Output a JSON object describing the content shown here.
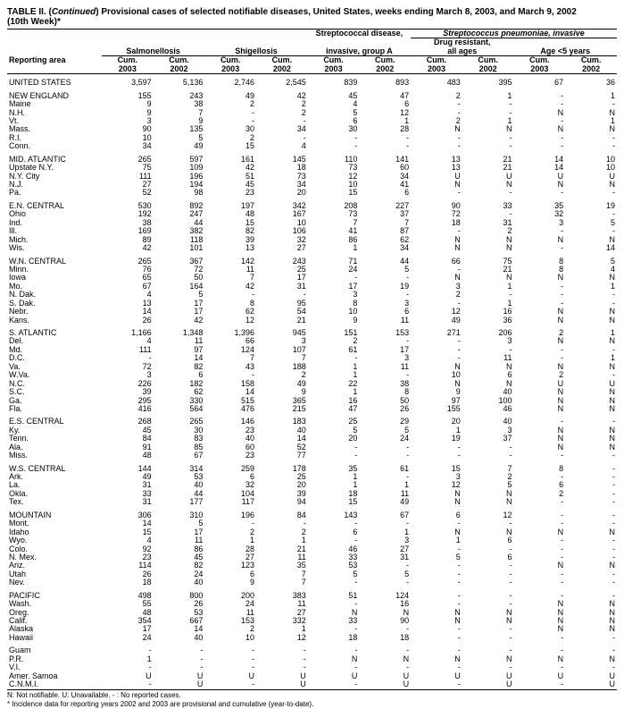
{
  "title_prefix": "TABLE II. (",
  "title_cont": "Continued",
  "title_suffix": ") Provisional cases of selected notifiable diseases, United States, weeks ending March 8, 2003, and March 9, 2002",
  "title_line2": "(10th Week)*",
  "super_header": "Streptococcus pneumoniae, invasive",
  "disease_headers": [
    "Salmonellosis",
    "Shigellosis",
    "Streptococcal disease,",
    "invasive, group A",
    "Drug resistant,",
    "all ages",
    "Age <5 years"
  ],
  "col_labels": {
    "area": "Reporting area",
    "cum2003": "Cum.\n2003",
    "cum2002": "Cum.\n2002"
  },
  "footnotes": [
    "N: Not notifiable.        U: Unavailable.            - : No reported cases.",
    "* Incidence data for reporting years 2002 and 2003 are provisional and cumulative (year-to-date)."
  ],
  "blocks": [
    [
      [
        "UNITED STATES",
        "3,597",
        "5,136",
        "2,746",
        "2,545",
        "839",
        "893",
        "483",
        "395",
        "67",
        "36"
      ]
    ],
    [
      [
        "NEW ENGLAND",
        "155",
        "243",
        "49",
        "42",
        "45",
        "47",
        "2",
        "1",
        "-",
        "1"
      ],
      [
        "Maine",
        "9",
        "38",
        "2",
        "2",
        "4",
        "6",
        "-",
        "-",
        "-",
        "-"
      ],
      [
        "N.H.",
        "9",
        "7",
        "-",
        "2",
        "5",
        "12",
        "-",
        "-",
        "N",
        "N"
      ],
      [
        "Vt.",
        "3",
        "9",
        "-",
        "-",
        "6",
        "1",
        "2",
        "1",
        "-",
        "1"
      ],
      [
        "Mass.",
        "90",
        "135",
        "30",
        "34",
        "30",
        "28",
        "N",
        "N",
        "N",
        "N"
      ],
      [
        "R.I.",
        "10",
        "5",
        "2",
        "-",
        "-",
        "-",
        "-",
        "-",
        "-",
        "-"
      ],
      [
        "Conn.",
        "34",
        "49",
        "15",
        "4",
        "-",
        "-",
        "-",
        "-",
        "-",
        "-"
      ]
    ],
    [
      [
        "MID. ATLANTIC",
        "265",
        "597",
        "161",
        "145",
        "110",
        "141",
        "13",
        "21",
        "14",
        "10"
      ],
      [
        "Upstate N.Y.",
        "75",
        "109",
        "42",
        "18",
        "73",
        "60",
        "13",
        "21",
        "14",
        "10"
      ],
      [
        "N.Y. City",
        "111",
        "196",
        "51",
        "73",
        "12",
        "34",
        "U",
        "U",
        "U",
        "U"
      ],
      [
        "N.J.",
        "27",
        "194",
        "45",
        "34",
        "10",
        "41",
        "N",
        "N",
        "N",
        "N"
      ],
      [
        "Pa.",
        "52",
        "98",
        "23",
        "20",
        "15",
        "6",
        "-",
        "-",
        "-",
        "-"
      ]
    ],
    [
      [
        "E.N. CENTRAL",
        "530",
        "892",
        "197",
        "342",
        "208",
        "227",
        "90",
        "33",
        "35",
        "19"
      ],
      [
        "Ohio",
        "192",
        "247",
        "48",
        "167",
        "73",
        "37",
        "72",
        "-",
        "32",
        "-"
      ],
      [
        "Ind.",
        "38",
        "44",
        "15",
        "10",
        "7",
        "7",
        "18",
        "31",
        "3",
        "5"
      ],
      [
        "Ill.",
        "169",
        "382",
        "82",
        "106",
        "41",
        "87",
        "-",
        "2",
        "-",
        "-"
      ],
      [
        "Mich.",
        "89",
        "118",
        "39",
        "32",
        "86",
        "62",
        "N",
        "N",
        "N",
        "N"
      ],
      [
        "Wis.",
        "42",
        "101",
        "13",
        "27",
        "1",
        "34",
        "N",
        "N",
        "-",
        "14"
      ]
    ],
    [
      [
        "W.N. CENTRAL",
        "265",
        "367",
        "142",
        "243",
        "71",
        "44",
        "66",
        "75",
        "8",
        "5"
      ],
      [
        "Minn.",
        "76",
        "72",
        "11",
        "25",
        "24",
        "5",
        "-",
        "21",
        "8",
        "4"
      ],
      [
        "Iowa",
        "65",
        "50",
        "7",
        "17",
        "-",
        "-",
        "N",
        "N",
        "N",
        "N"
      ],
      [
        "Mo.",
        "67",
        "164",
        "42",
        "31",
        "17",
        "19",
        "3",
        "1",
        "-",
        "1"
      ],
      [
        "N. Dak.",
        "4",
        "5",
        "-",
        "-",
        "3",
        "-",
        "2",
        "-",
        "-",
        "-"
      ],
      [
        "S. Dak.",
        "13",
        "17",
        "8",
        "95",
        "8",
        "3",
        "-",
        "1",
        "-",
        "-"
      ],
      [
        "Nebr.",
        "14",
        "17",
        "62",
        "54",
        "10",
        "6",
        "12",
        "16",
        "N",
        "N"
      ],
      [
        "Kans.",
        "26",
        "42",
        "12",
        "21",
        "9",
        "11",
        "49",
        "36",
        "N",
        "N"
      ]
    ],
    [
      [
        "S. ATLANTIC",
        "1,166",
        "1,348",
        "1,396",
        "945",
        "151",
        "153",
        "271",
        "206",
        "2",
        "1"
      ],
      [
        "Del.",
        "4",
        "11",
        "66",
        "3",
        "2",
        "-",
        "-",
        "3",
        "N",
        "N"
      ],
      [
        "Md.",
        "111",
        "97",
        "124",
        "107",
        "61",
        "17",
        "-",
        "-",
        "-",
        "-"
      ],
      [
        "D.C.",
        "-",
        "14",
        "7",
        "7",
        "-",
        "3",
        "-",
        "11",
        "-",
        "1"
      ],
      [
        "Va.",
        "72",
        "82",
        "43",
        "188",
        "1",
        "11",
        "N",
        "N",
        "N",
        "N"
      ],
      [
        "W.Va.",
        "3",
        "6",
        "-",
        "2",
        "1",
        "-",
        "10",
        "6",
        "2",
        "-"
      ],
      [
        "N.C.",
        "226",
        "182",
        "158",
        "49",
        "22",
        "38",
        "N",
        "N",
        "U",
        "U"
      ],
      [
        "S.C.",
        "39",
        "62",
        "14",
        "9",
        "1",
        "8",
        "9",
        "40",
        "N",
        "N"
      ],
      [
        "Ga.",
        "295",
        "330",
        "515",
        "365",
        "16",
        "50",
        "97",
        "100",
        "N",
        "N"
      ],
      [
        "Fla.",
        "416",
        "564",
        "476",
        "215",
        "47",
        "26",
        "155",
        "46",
        "N",
        "N"
      ]
    ],
    [
      [
        "E.S. CENTRAL",
        "268",
        "265",
        "146",
        "183",
        "25",
        "29",
        "20",
        "40",
        "-",
        "-"
      ],
      [
        "Ky.",
        "45",
        "30",
        "23",
        "40",
        "5",
        "5",
        "1",
        "3",
        "N",
        "N"
      ],
      [
        "Tenn.",
        "84",
        "83",
        "40",
        "14",
        "20",
        "24",
        "19",
        "37",
        "N",
        "N"
      ],
      [
        "Ala.",
        "91",
        "85",
        "60",
        "52",
        "-",
        "-",
        "-",
        "-",
        "N",
        "N"
      ],
      [
        "Miss.",
        "48",
        "67",
        "23",
        "77",
        "-",
        "-",
        "-",
        "-",
        "-",
        "-"
      ]
    ],
    [
      [
        "W.S. CENTRAL",
        "144",
        "314",
        "259",
        "178",
        "35",
        "61",
        "15",
        "7",
        "8",
        "-"
      ],
      [
        "Ark.",
        "49",
        "53",
        "6",
        "25",
        "1",
        "-",
        "3",
        "2",
        "-",
        "-"
      ],
      [
        "La.",
        "31",
        "40",
        "32",
        "20",
        "1",
        "1",
        "12",
        "5",
        "6",
        "-"
      ],
      [
        "Okla.",
        "33",
        "44",
        "104",
        "39",
        "18",
        "11",
        "N",
        "N",
        "2",
        "-"
      ],
      [
        "Tex.",
        "31",
        "177",
        "117",
        "94",
        "15",
        "49",
        "N",
        "N",
        "-",
        "-"
      ]
    ],
    [
      [
        "MOUNTAIN",
        "306",
        "310",
        "196",
        "84",
        "143",
        "67",
        "6",
        "12",
        "-",
        "-"
      ],
      [
        "Mont.",
        "14",
        "5",
        "-",
        "-",
        "-",
        "-",
        "-",
        "-",
        "-",
        "-"
      ],
      [
        "Idaho",
        "15",
        "17",
        "2",
        "2",
        "6",
        "1",
        "N",
        "N",
        "N",
        "N"
      ],
      [
        "Wyo.",
        "4",
        "11",
        "1",
        "1",
        "-",
        "3",
        "1",
        "6",
        "-",
        "-"
      ],
      [
        "Colo.",
        "92",
        "86",
        "28",
        "21",
        "46",
        "27",
        "-",
        "-",
        "-",
        "-"
      ],
      [
        "N. Mex.",
        "23",
        "45",
        "27",
        "11",
        "33",
        "31",
        "5",
        "6",
        "-",
        "-"
      ],
      [
        "Ariz.",
        "114",
        "82",
        "123",
        "35",
        "53",
        "-",
        "-",
        "-",
        "N",
        "N"
      ],
      [
        "Utah",
        "26",
        "24",
        "6",
        "7",
        "5",
        "5",
        "-",
        "-",
        "-",
        "-"
      ],
      [
        "Nev.",
        "18",
        "40",
        "9",
        "7",
        "-",
        "-",
        "-",
        "-",
        "-",
        "-"
      ]
    ],
    [
      [
        "PACIFIC",
        "498",
        "800",
        "200",
        "383",
        "51",
        "124",
        "-",
        "-",
        "-",
        "-"
      ],
      [
        "Wash.",
        "55",
        "26",
        "24",
        "11",
        "-",
        "16",
        "-",
        "-",
        "N",
        "N"
      ],
      [
        "Oreg.",
        "48",
        "53",
        "11",
        "27",
        "N",
        "N",
        "N",
        "N",
        "N",
        "N"
      ],
      [
        "Calif.",
        "354",
        "667",
        "153",
        "332",
        "33",
        "90",
        "N",
        "N",
        "N",
        "N"
      ],
      [
        "Alaska",
        "17",
        "14",
        "2",
        "1",
        "-",
        "-",
        "-",
        "-",
        "N",
        "N"
      ],
      [
        "Hawaii",
        "24",
        "40",
        "10",
        "12",
        "18",
        "18",
        "-",
        "-",
        "-",
        "-"
      ]
    ],
    [
      [
        "Guam",
        "-",
        "-",
        "-",
        "-",
        "-",
        "-",
        "-",
        "-",
        "-",
        "-"
      ],
      [
        "P.R.",
        "1",
        "-",
        "-",
        "-",
        "N",
        "N",
        "N",
        "N",
        "N",
        "N"
      ],
      [
        "V.I.",
        "-",
        "-",
        "-",
        "-",
        "-",
        "-",
        "-",
        "-",
        "-",
        "-"
      ],
      [
        "Amer. Samoa",
        "U",
        "U",
        "U",
        "U",
        "U",
        "U",
        "U",
        "U",
        "U",
        "U"
      ],
      [
        "C.N.M.I.",
        "-",
        "U",
        "-",
        "U",
        "-",
        "U",
        "-",
        "U",
        "-",
        "U"
      ]
    ]
  ]
}
